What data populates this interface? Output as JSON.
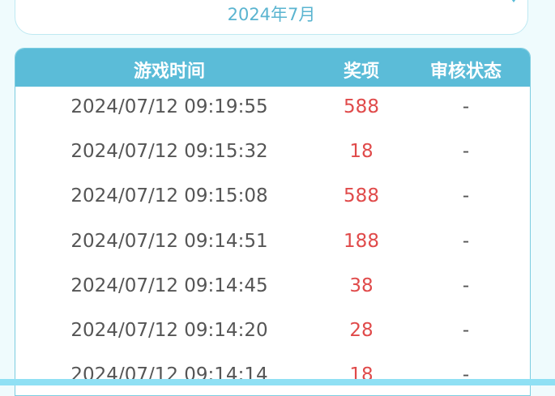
{
  "dropdown": {
    "label": "2024年7月"
  },
  "table": {
    "headers": [
      "游戏时间",
      "奖项",
      "审核状态"
    ],
    "rows": [
      [
        "2024/07/12 09:19:55",
        "588",
        "-"
      ],
      [
        "2024/07/12 09:15:32",
        "18",
        "-"
      ],
      [
        "2024/07/12 09:15:08",
        "588",
        "-"
      ],
      [
        "2024/07/12 09:14:51",
        "188",
        "-"
      ],
      [
        "2024/07/12 09:14:45",
        "38",
        "-"
      ],
      [
        "2024/07/12 09:14:20",
        "28",
        "-"
      ],
      [
        "2024/07/12 09:14:14",
        "18",
        "-"
      ]
    ]
  }
}
